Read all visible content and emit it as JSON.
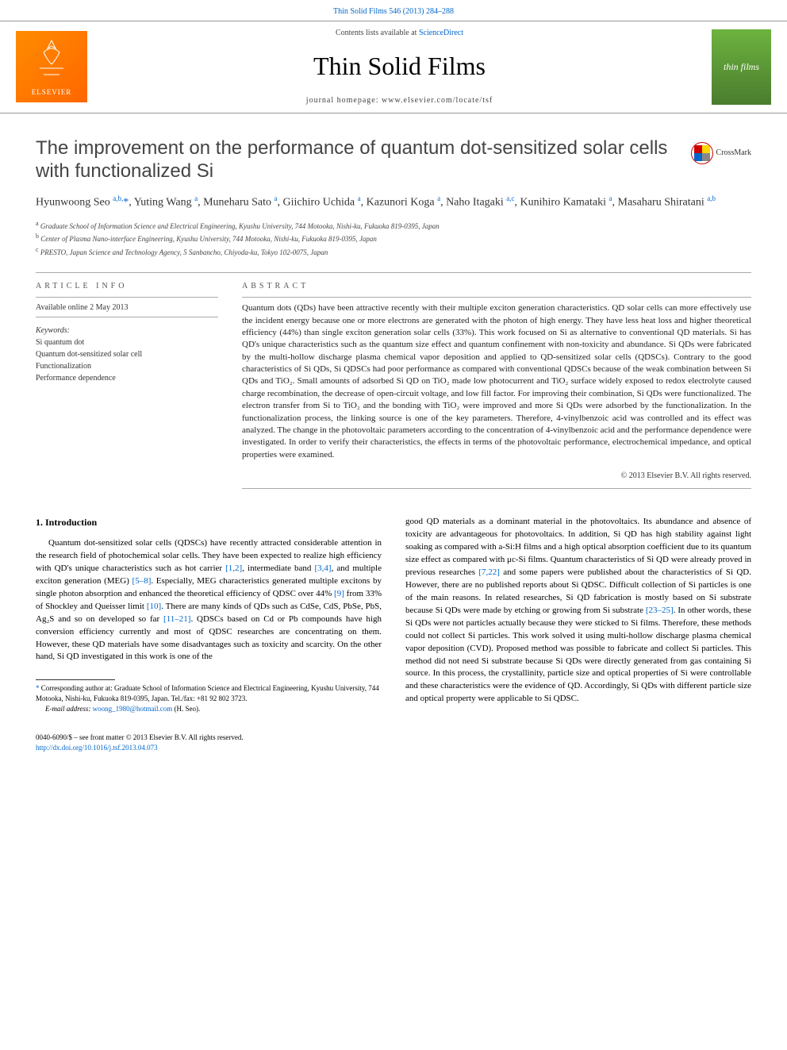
{
  "header": {
    "top_link": "Thin Solid Films 546 (2013) 284–288",
    "contents_prefix": "Contents lists available at ",
    "contents_link": "ScienceDirect",
    "journal_name": "Thin Solid Films",
    "homepage_prefix": "journal homepage: ",
    "homepage_url": "www.elsevier.com/locate/tsf",
    "publisher_logo_text": "ELSEVIER",
    "cover_text": "thin films"
  },
  "title": "The improvement on the performance of quantum dot-sensitized solar cells with functionalized Si",
  "crossmark": "CrossMark",
  "authors_html": "Hyunwoong Seo <sup>a,b,</sup><span class='star'>*</span>, Yuting Wang <sup>a</sup>, Muneharu Sato <sup>a</sup>, Giichiro Uchida <sup>a</sup>, Kazunori Koga <sup>a</sup>, Naho Itagaki <sup>a,c</sup>, Kunihiro Kamataki <sup>a</sup>, Masaharu Shiratani <sup>a,b</sup>",
  "affiliations": {
    "a": "Graduate School of Information Science and Electrical Engineering, Kyushu University, 744 Motooka, Nishi-ku, Fukuoka 819-0395, Japan",
    "b": "Center of Plasma Nano-interface Engineering, Kyushu University, 744 Motooka, Nishi-ku, Fukuoka 819-0395, Japan",
    "c": "PRESTO, Japan Science and Technology Agency, 5 Sanbancho, Chiyoda-ku, Tokyo 102-0075, Japan"
  },
  "article_info": {
    "label": "ARTICLE INFO",
    "available": "Available online 2 May 2013",
    "keywords_label": "Keywords:",
    "keywords": [
      "Si quantum dot",
      "Quantum dot-sensitized solar cell",
      "Functionalization",
      "Performance dependence"
    ]
  },
  "abstract": {
    "label": "ABSTRACT",
    "text": "Quantum dots (QDs) have been attractive recently with their multiple exciton generation characteristics. QD solar cells can more effectively use the incident energy because one or more electrons are generated with the photon of high energy. They have less heat loss and higher theoretical efficiency (44%) than single exciton generation solar cells (33%). This work focused on Si as alternative to conventional QD materials. Si has QD's unique characteristics such as the quantum size effect and quantum confinement with non-toxicity and abundance. Si QDs were fabricated by the multi-hollow discharge plasma chemical vapor deposition and applied to QD-sensitized solar cells (QDSCs). Contrary to the good characteristics of Si QDs, Si QDSCs had poor performance as compared with conventional QDSCs because of the weak combination between Si QDs and TiO₂. Small amounts of adsorbed Si QD on TiO₂ made low photocurrent and TiO₂ surface widely exposed to redox electrolyte caused charge recombination, the decrease of open-circuit voltage, and low fill factor. For improving their combination, Si QDs were functionalized. The electron transfer from Si to TiO₂ and the bonding with TiO₂ were improved and more Si QDs were adsorbed by the functionalization. In the functionalization process, the linking source is one of the key parameters. Therefore, 4-vinylbenzoic acid was controlled and its effect was analyzed. The change in the photovoltaic parameters according to the concentration of 4-vinylbenzoic acid and the performance dependence were investigated. In order to verify their characteristics, the effects in terms of the photovoltaic performance, electrochemical impedance, and optical properties were examined.",
    "copyright": "© 2013 Elsevier B.V. All rights reserved."
  },
  "intro": {
    "heading": "1. Introduction",
    "col1": "Quantum dot-sensitized solar cells (QDSCs) have recently attracted considerable attention in the research field of photochemical solar cells. They have been expected to realize high efficiency with QD's unique characteristics such as hot carrier <span class='ref'>[1,2]</span>, intermediate band <span class='ref'>[3,4]</span>, and multiple exciton generation (MEG) <span class='ref'>[5–8]</span>. Especially, MEG characteristics generated multiple excitons by single photon absorption and enhanced the theoretical efficiency of QDSC over 44% <span class='ref'>[9]</span> from 33% of Shockley and Queisser limit <span class='ref'>[10]</span>. There are many kinds of QDs such as CdSe, CdS, PbSe, PbS, Ag₂S and so on developed so far <span class='ref'>[11–21]</span>. QDSCs based on Cd or Pb compounds have high conversion efficiency currently and most of QDSC researches are concentrating on them. However, these QD materials have some disadvantages such as toxicity and scarcity. On the other hand, Si QD investigated in this work is one of the",
    "col2": "good QD materials as a dominant material in the photovoltaics. Its abundance and absence of toxicity are advantageous for photovoltaics. In addition, Si QD has high stability against light soaking as compared with a-Si:H films and a high optical absorption coefficient due to its quantum size effect as compared with μc-Si films. Quantum characteristics of Si QD were already proved in previous researches <span class='ref'>[7,22]</span> and some papers were published about the characteristics of Si QD. However, there are no published reports about Si QDSC. Difficult collection of Si particles is one of the main reasons. In related researches, Si QD fabrication is mostly based on Si substrate because Si QDs were made by etching or growing from Si substrate <span class='ref'>[23–25]</span>. In other words, these Si QDs were not particles actually because they were sticked to Si films. Therefore, these methods could not collect Si particles. This work solved it using multi-hollow discharge plasma chemical vapor deposition (CVD). Proposed method was possible to fabricate and collect Si particles. This method did not need Si substrate because Si QDs were directly generated from gas containing Si source. In this process, the crystallinity, particle size and optical properties of Si were controllable and these characteristics were the evidence of QD. Accordingly, Si QDs with different particle size and optical property were applicable to Si QDSC."
  },
  "footnote": {
    "star_text": "Corresponding author at: Graduate School of Information Science and Electrical Engineering, Kyushu University, 744 Motooka, Nishi-ku, Fukuoka 819-0395, Japan. Tel./fax: +81 92 802 3723.",
    "email_label": "E-mail address: ",
    "email": "woong_1980@hotmail.com",
    "email_suffix": " (H. Seo)."
  },
  "footer": {
    "issn_line": "0040-6090/$ – see front matter © 2013 Elsevier B.V. All rights reserved.",
    "doi": "http://dx.doi.org/10.1016/j.tsf.2013.04.073"
  },
  "colors": {
    "link": "#0066cc",
    "text": "#222222",
    "label": "#555555",
    "divider": "#aaaaaa",
    "elsevier": "#ff6600"
  }
}
